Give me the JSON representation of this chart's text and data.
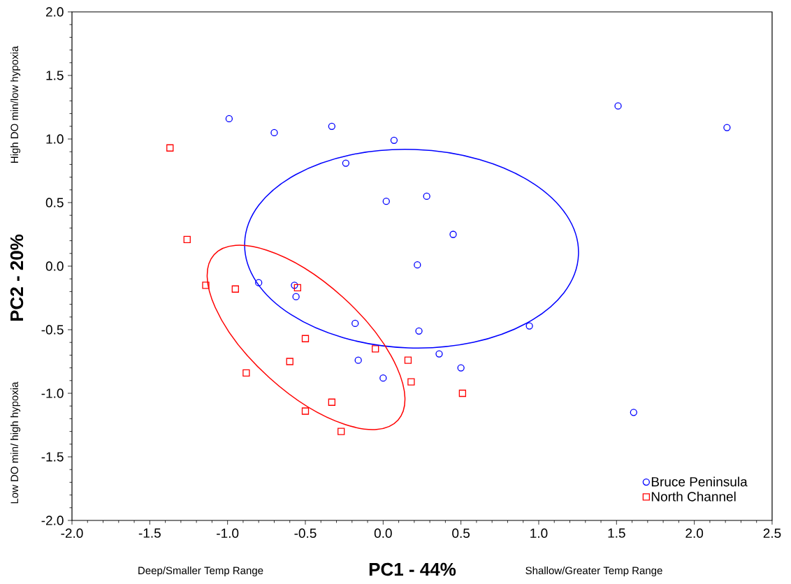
{
  "chart_data": {
    "type": "scatter",
    "xlabel": "PC1 - 44%",
    "ylabel": "PC2 - 20%",
    "annotations": [
      "Deep/Smaller Temp Range",
      "Shallow/Greater Temp Range",
      "High DO min/low hypoxia",
      "Low DO min/ high hypoxia"
    ],
    "xlim": [
      -2.0,
      2.5
    ],
    "ylim": [
      -2.0,
      2.0
    ],
    "xticks": [
      {
        "value": -2,
        "label": "-2.0"
      },
      {
        "value": -1.5,
        "label": "-1.5"
      },
      {
        "value": -1,
        "label": "-1.0"
      },
      {
        "value": -0.5,
        "label": "-0.5"
      },
      {
        "value": 0,
        "label": "0.0"
      },
      {
        "value": 0.5,
        "label": "0.5"
      },
      {
        "value": 1,
        "label": "1.0"
      },
      {
        "value": 1.5,
        "label": "1.5"
      },
      {
        "value": 2,
        "label": "2.0"
      },
      {
        "value": 2.5,
        "label": "2.5"
      }
    ],
    "yticks": [
      {
        "value": -2,
        "label": "-2.0"
      },
      {
        "value": -1.5,
        "label": "-1.5"
      },
      {
        "value": -1,
        "label": "-1.0"
      },
      {
        "value": -0.5,
        "label": "-0.5"
      },
      {
        "value": 0,
        "label": "0.0"
      },
      {
        "value": 0.5,
        "label": "0.5"
      },
      {
        "value": 1,
        "label": "1.0"
      },
      {
        "value": 1.5,
        "label": "1.5"
      },
      {
        "value": 2,
        "label": "2.0"
      }
    ],
    "grid": false,
    "legend": "bottom right",
    "series": [
      {
        "name": "Bruce Peninsula",
        "type": "scatter",
        "marker": "circle",
        "color": "#0000ff",
        "x": [
          -0.99,
          -0.7,
          -0.33,
          0.07,
          -0.24,
          0.02,
          0.28,
          0.45,
          0.22,
          -0.8,
          -0.57,
          -0.56,
          -0.18,
          0.23,
          0.36,
          -0.16,
          0.0,
          0.5,
          0.94,
          1.51,
          2.21,
          1.61
        ],
        "values": [
          1.16,
          1.05,
          1.1,
          0.99,
          0.81,
          0.51,
          0.55,
          0.25,
          0.01,
          -0.13,
          -0.15,
          -0.24,
          -0.45,
          -0.51,
          -0.69,
          -0.74,
          -0.88,
          -0.8,
          -0.47,
          1.26,
          1.09,
          -1.15
        ]
      },
      {
        "name": "North Channel",
        "type": "scatter",
        "marker": "square",
        "color": "#ff0000",
        "x": [
          -1.37,
          -1.26,
          -1.14,
          -0.95,
          -0.55,
          -0.5,
          -0.05,
          0.16,
          -0.6,
          -0.88,
          0.18,
          0.51,
          -0.33,
          -0.5,
          -0.27
        ],
        "values": [
          0.93,
          0.21,
          -0.15,
          -0.18,
          -0.17,
          -0.57,
          -0.65,
          -0.74,
          -0.75,
          -0.84,
          -0.91,
          -1.0,
          -1.07,
          -1.14,
          -1.3
        ]
      }
    ]
  }
}
